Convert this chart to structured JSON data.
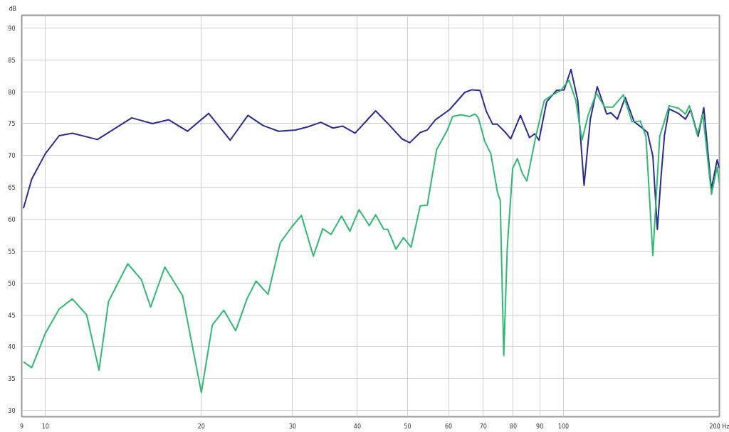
{
  "chart_data": {
    "type": "line",
    "ylabel": "dB",
    "log": "x",
    "xlim": [
      9,
      200
    ],
    "ylim": [
      29,
      92
    ],
    "xticks": [
      9,
      10,
      20,
      30,
      40,
      50,
      60,
      70,
      80,
      90,
      100,
      {
        "value": 200,
        "label": "200 Hz"
      }
    ],
    "yticks": [
      30,
      35,
      40,
      45,
      50,
      55,
      60,
      65,
      70,
      75,
      80,
      85,
      90
    ],
    "grid": true,
    "line_style": "solid",
    "marker": "none",
    "series": [
      {
        "color": "#2b2b8f",
        "x": [
          9.07,
          9.41,
          10,
          10.63,
          11.27,
          12.6,
          14.68,
          16.09,
          17.3,
          18.8,
          20.66,
          22.74,
          24.6,
          26.3,
          28.2,
          30.4,
          32.1,
          34.0,
          35.9,
          37.5,
          39.6,
          43.4,
          46.2,
          48.8,
          50.5,
          52.9,
          54.6,
          56.6,
          60.3,
          64.5,
          66.5,
          69.0,
          71.0,
          73.0,
          74.5,
          76.9,
          79.1,
          82.6,
          86.0,
          88.0,
          89.7,
          92.8,
          96.9,
          100.3,
          103.4,
          106.6,
          109.6,
          112.7,
          116.2,
          121.2,
          123.5,
          127.1,
          131.6,
          136.9,
          142.5,
          145.3,
          148.8,
          151.8,
          154.3,
          156.7,
          160,
          166.7,
          172,
          176,
          182,
          186.6,
          193,
          198,
          200
        ],
        "values": [
          61.7,
          66.3,
          70.3,
          73.1,
          73.5,
          72.5,
          75.9,
          75.0,
          75.6,
          73.8,
          76.6,
          72.4,
          76.3,
          74.7,
          73.8,
          74.0,
          74.5,
          75.2,
          74.3,
          74.6,
          73.5,
          77.0,
          74.7,
          72.6,
          72.0,
          73.6,
          74.0,
          75.6,
          77.2,
          79.9,
          80.3,
          80.2,
          76.9,
          74.9,
          74.9,
          73.8,
          72.6,
          76.3,
          72.8,
          73.4,
          72.4,
          78.4,
          80.2,
          80.3,
          83.5,
          78.6,
          65.3,
          75.7,
          80.8,
          76.5,
          76.7,
          75.7,
          79.1,
          75.3,
          74.2,
          73.6,
          69.9,
          58.4,
          66.6,
          73.2,
          77.3,
          76.6,
          75.7,
          77.2,
          73.0,
          77.5,
          64.7,
          69.3,
          68.0
        ]
      },
      {
        "color": "#33b874",
        "x": [
          9.07,
          9.41,
          10,
          10.63,
          11.27,
          12.01,
          12.69,
          13.24,
          14.42,
          15.32,
          15.96,
          17.0,
          18.4,
          20.0,
          21.0,
          22.1,
          23.3,
          24.5,
          25.5,
          26.9,
          28.4,
          29.9,
          31.2,
          32.9,
          34.3,
          35.6,
          37.3,
          38.7,
          40.3,
          42.2,
          43.4,
          45.0,
          45.8,
          47.5,
          49.1,
          50.8,
          52.9,
          54.6,
          56.9,
          59.7,
          61.1,
          63.4,
          65.8,
          67.5,
          68.5,
          70.5,
          72.4,
          74.6,
          75.5,
          76.7,
          77.9,
          79.8,
          81.5,
          83.3,
          85.0,
          88.5,
          91.8,
          95.2,
          98.8,
          102.5,
          105.6,
          108.6,
          111.6,
          115.8,
          120.1,
          124.6,
          130.5,
          135.6,
          140.7,
          144.3,
          148.8,
          153.4,
          160,
          167,
          172,
          175,
          181.3,
          185.8,
          193.1,
          198,
          200
        ],
        "values": [
          37.6,
          36.7,
          42.1,
          45.9,
          47.5,
          45.0,
          36.3,
          47.1,
          53.0,
          50.5,
          46.2,
          52.5,
          48.0,
          32.8,
          43.4,
          45.7,
          42.5,
          47.5,
          50.3,
          48.2,
          56.3,
          58.8,
          60.6,
          54.2,
          58.5,
          57.6,
          60.5,
          58.1,
          61.5,
          59.0,
          60.7,
          58.4,
          58.4,
          55.3,
          57.1,
          55.6,
          62.1,
          62.2,
          70.9,
          74.0,
          76.1,
          76.4,
          76.1,
          76.5,
          75.9,
          72.2,
          70.3,
          64.2,
          63.0,
          38.6,
          55.5,
          68.0,
          69.5,
          67.2,
          66.0,
          73.1,
          78.6,
          79.5,
          80.2,
          81.8,
          78.7,
          72.4,
          76.3,
          79.8,
          77.6,
          77.6,
          79.5,
          75.3,
          75.4,
          73.0,
          54.3,
          73.0,
          77.8,
          77.4,
          76.5,
          77.8,
          73.2,
          76.5,
          63.9,
          68.2,
          65.7
        ]
      }
    ]
  }
}
